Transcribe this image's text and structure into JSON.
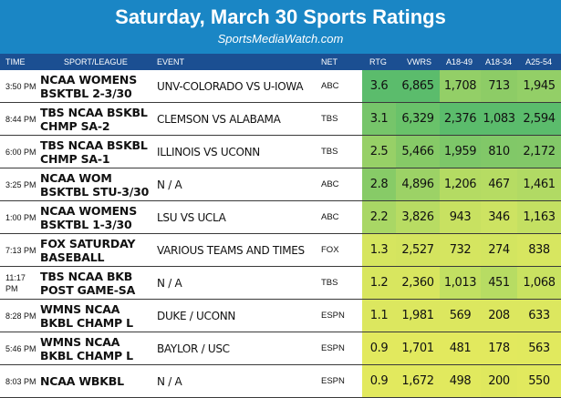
{
  "header": {
    "title": "Saturday, March 30 Sports Ratings",
    "subtitle": "SportsMediaWatch.com"
  },
  "columns": {
    "time": "TIME",
    "sport": "SPORT/LEAGUE",
    "event": "EVENT",
    "net": "NET",
    "rtg": "RTG",
    "vwrs": "VWRS",
    "a1849": "A18-49",
    "a1834": "A18-34",
    "a2554": "A25-54"
  },
  "colors": {
    "header_bg": "#1a86c5",
    "column_header_bg": "#1b4f92",
    "scale_high": "#57bb6b",
    "scale_low": "#dde65f"
  },
  "rows": [
    {
      "time": "3:50 PM",
      "sport": "NCAA WOMENS BSKTBL 2-3/30",
      "event": "UNV-COLORADO VS U-IOWA",
      "net": "ABC",
      "rtg": "3.6",
      "vwrs": "6,865",
      "a1849": "1,708",
      "a1834": "713",
      "a2554": "1,945",
      "c": [
        "#5bbc6c",
        "#5bbc6c",
        "#93cf67",
        "#8dcc66",
        "#93cf67"
      ]
    },
    {
      "time": "8:44 PM",
      "sport": "TBS NCAA BSKBL CHMP SA-2",
      "event": "CLEMSON VS ALABAMA",
      "net": "TBS",
      "rtg": "3.1",
      "vwrs": "6,329",
      "a1849": "2,376",
      "a1834": "1,083",
      "a2554": "2,594",
      "c": [
        "#76c56a",
        "#69c26a",
        "#5bbc6c",
        "#5bbc6c",
        "#5bbc6c"
      ]
    },
    {
      "time": "6:00 PM",
      "sport": "TBS NCAA BSKBL CHMP SA-1",
      "event": "ILLINOIS VS UCONN",
      "net": "TBS",
      "rtg": "2.5",
      "vwrs": "5,466",
      "a1849": "1,959",
      "a1834": "810",
      "a2554": "2,172",
      "c": [
        "#97d067",
        "#86ca67",
        "#7dc769",
        "#81c868",
        "#82c868"
      ]
    },
    {
      "time": "3:25 PM",
      "sport": "NCAA WOM BSKTBL STU-3/30",
      "event": "N / A",
      "net": "ABC",
      "rtg": "2.8",
      "vwrs": "4,896",
      "a1849": "1,206",
      "a1834": "467",
      "a2554": "1,461",
      "c": [
        "#87cb67",
        "#9cd266",
        "#b4db63",
        "#b6dc63",
        "#b1da64"
      ]
    },
    {
      "time": "1:00 PM",
      "sport": "NCAA WOMENS BSKTBL 1-3/30",
      "event": "LSU VS UCLA",
      "net": "ABC",
      "rtg": "2.2",
      "vwrs": "3,826",
      "a1849": "943",
      "a1834": "346",
      "a2554": "1,163",
      "c": [
        "#a9d765",
        "#b8dc63",
        "#c8e161",
        "#cde362",
        "#c4e062"
      ]
    },
    {
      "time": "7:13 PM",
      "sport": "FOX SATURDAY BASEBALL",
      "event": "VARIOUS TEAMS AND TIMES",
      "net": "FOX",
      "rtg": "1.3",
      "vwrs": "2,527",
      "a1849": "732",
      "a1834": "274",
      "a2554": "838",
      "c": [
        "#d6e55f",
        "#d4e45f",
        "#d5e560",
        "#d3e560",
        "#d7e660"
      ]
    },
    {
      "time": "11:17 PM",
      "sport": "TBS NCAA BKB POST GAME-SA",
      "event": "N / A",
      "net": "TBS",
      "rtg": "1.2",
      "vwrs": "2,360",
      "a1849": "1,013",
      "a1834": "451",
      "a2554": "1,068",
      "c": [
        "#d8e65f",
        "#d8e65f",
        "#c2e062",
        "#b7dc63",
        "#c9e261"
      ]
    },
    {
      "time": "8:28 PM",
      "sport": "WMNS NCAA BKBL CHAMP L",
      "event": "DUKE / UCONN",
      "net": "ESPN",
      "rtg": "1.1",
      "vwrs": "1,981",
      "a1849": "569",
      "a1834": "208",
      "a2554": "633",
      "c": [
        "#dce75f",
        "#dce75f",
        "#dce75f",
        "#dce75f",
        "#dce75f"
      ]
    },
    {
      "time": "5:46 PM",
      "sport": "WMNS NCAA BKBL CHAMP L",
      "event": "BAYLOR / USC",
      "net": "ESPN",
      "rtg": "0.9",
      "vwrs": "1,701",
      "a1849": "481",
      "a1834": "178",
      "a2554": "563",
      "c": [
        "#e2e95e",
        "#e2e95e",
        "#e2e95e",
        "#e2e95e",
        "#e1e95e"
      ]
    },
    {
      "time": "8:03 PM",
      "sport": "NCAA WBKBL",
      "event": "N / A",
      "net": "ESPN",
      "rtg": "0.9",
      "vwrs": "1,672",
      "a1849": "498",
      "a1834": "200",
      "a2554": "550",
      "c": [
        "#e2e95e",
        "#e2e95e",
        "#e1e95e",
        "#dfe85e",
        "#e1e95e"
      ]
    }
  ]
}
